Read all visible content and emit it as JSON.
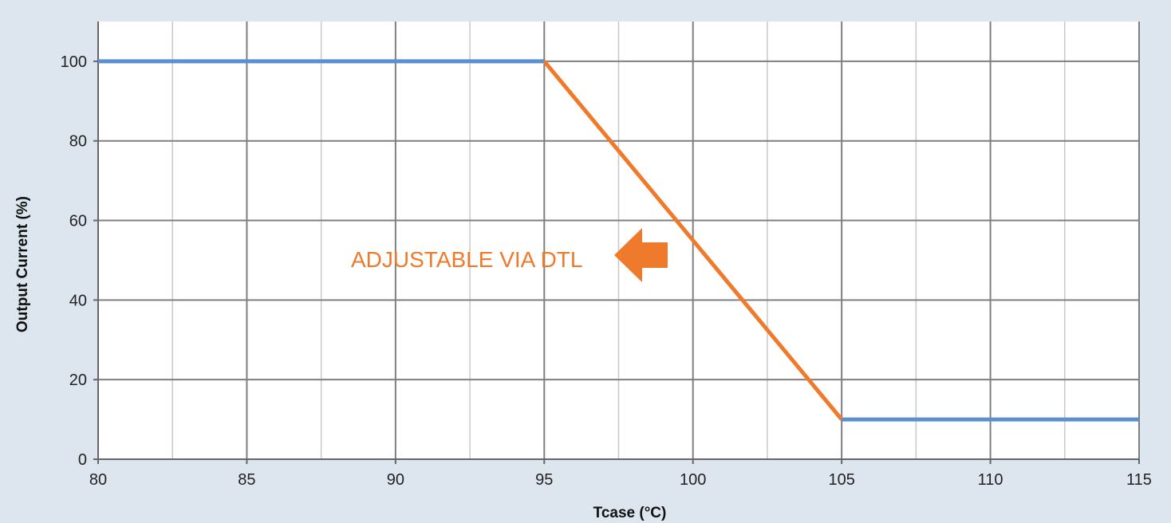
{
  "colors": {
    "background": "#dde6ef",
    "plot_background": "#ffffff",
    "major_grid": "#7f7f7f",
    "minor_grid": "#c8c8c8",
    "series_flat": "#5b8fd0",
    "series_derating": "#f07a2b",
    "annotation": "#f07a2b"
  },
  "chart_data": {
    "type": "line",
    "title": "",
    "xlabel": "Tcase (°C)",
    "ylabel": "Output Current (%)",
    "xlim": [
      80,
      115
    ],
    "ylim": [
      0,
      110
    ],
    "x_ticks": [
      80,
      85,
      90,
      95,
      100,
      105,
      110,
      115
    ],
    "y_ticks": [
      0,
      20,
      40,
      60,
      80,
      100
    ],
    "x_minor_gridlines": [
      82.5,
      87.5,
      92.5,
      97.5,
      102.5,
      107.5,
      112.5
    ],
    "grid": true,
    "legend": "none",
    "series": [
      {
        "color": "#5b8fd0",
        "points": [
          [
            80,
            100
          ],
          [
            95,
            100
          ]
        ]
      },
      {
        "color": "#f07a2b",
        "points": [
          [
            95,
            100
          ],
          [
            105,
            10
          ]
        ]
      },
      {
        "color": "#5b8fd0",
        "points": [
          [
            105,
            10
          ],
          [
            115,
            10
          ]
        ]
      }
    ],
    "annotations": [
      {
        "text": "ADJUSTABLE VIA DTL",
        "icon": "left-arrow-icon",
        "color": "#f07a2b"
      }
    ]
  }
}
